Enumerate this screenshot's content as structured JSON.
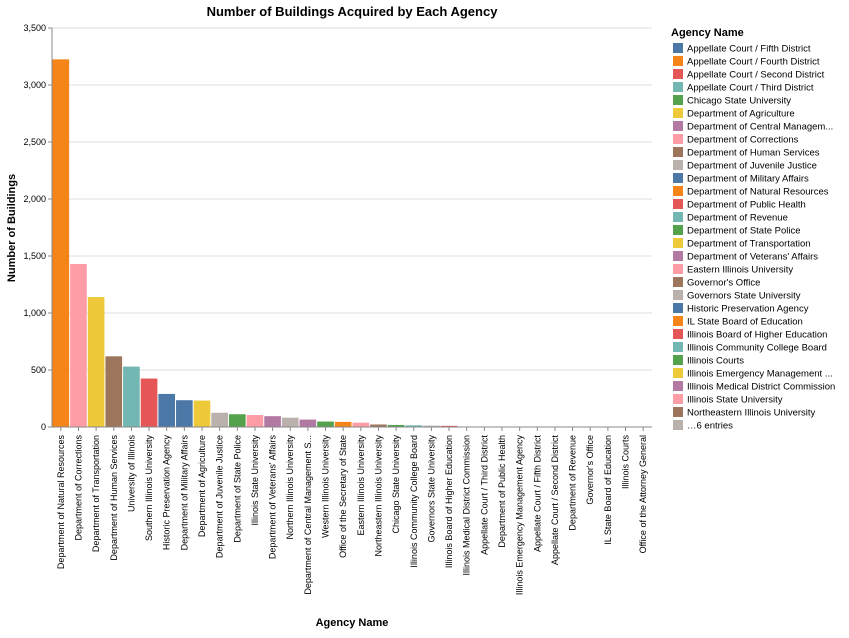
{
  "chart_data": {
    "type": "bar",
    "title": "Number of Buildings Acquired by Each Agency",
    "xlabel": "Agency Name",
    "ylabel": "Number of Buildings",
    "ylim": [
      0,
      3500
    ],
    "yticks": [
      0,
      500,
      1000,
      1500,
      2000,
      2500,
      3000,
      3500
    ],
    "ytick_labels": [
      "0",
      "500",
      "1,000",
      "1,500",
      "2,000",
      "2,500",
      "3,000",
      "3,500"
    ],
    "grid": true,
    "categories": [
      "Department of Natural Resources",
      "Department of Corrections",
      "Department of Transportation",
      "Department of Human Services",
      "University of Illinois",
      "Southern Illinois University",
      "Historic Preservation Agency",
      "Department of Military Affairs",
      "Department of Agriculture",
      "Department of Juvenile Justice",
      "Department of State Police",
      "Illinois State University",
      "Department of Veterans' Affairs",
      "Northern Illinois University",
      "Department of Central Management S...",
      "Western Illinois University",
      "Office of the Secretary of State",
      "Eastern Illinois University",
      "Northeastern Illinois University",
      "Chicago State University",
      "Illinois Community College Board",
      "Governors State University",
      "Illinois Board of Higher Education",
      "Illinois Medical District Commission",
      "Appellate Court / Third District",
      "Department of Public Health",
      "Illinois Emergency Management Agency",
      "Appellate Court / Fifth District",
      "Appellate Court / Second District",
      "Department of Revenue",
      "Governor's Office",
      "IL State Board of Education",
      "Illinois Courts",
      "Office of the Attorney General"
    ],
    "values": [
      3225,
      1430,
      1140,
      620,
      530,
      425,
      290,
      235,
      232,
      125,
      112,
      105,
      95,
      82,
      65,
      48,
      45,
      38,
      22,
      18,
      15,
      12,
      10,
      4,
      3,
      3,
      3,
      2,
      2,
      2,
      1,
      1,
      1,
      1
    ],
    "bar_colors": [
      "#f58518",
      "#ff9da6",
      "#eeca3b",
      "#9d755d",
      "#72b7b2",
      "#e45756",
      "#4c78a8",
      "#4c78a8",
      "#eeca3b",
      "#bab0ac",
      "#54a24b",
      "#ff9da6",
      "#b279a2",
      "#bab0ac",
      "#b279a2",
      "#54a24b",
      "#f58518",
      "#ff9da6",
      "#9d755d",
      "#54a24b",
      "#72b7b2",
      "#bab0ac",
      "#e45756",
      "#b279a2",
      "#72b7b2",
      "#e45756",
      "#eeca3b",
      "#4c78a8",
      "#e45756",
      "#72b7b2",
      "#9d755d",
      "#f58518",
      "#54a24b",
      "#4c78a8"
    ],
    "legend": {
      "title": "Agency Name",
      "position": "right",
      "entries": [
        {
          "label": "Appellate Court / Fifth District",
          "color": "#4c78a8"
        },
        {
          "label": "Appellate Court / Fourth District",
          "color": "#f58518"
        },
        {
          "label": "Appellate Court / Second District",
          "color": "#e45756"
        },
        {
          "label": "Appellate Court / Third District",
          "color": "#72b7b2"
        },
        {
          "label": "Chicago State University",
          "color": "#54a24b"
        },
        {
          "label": "Department of Agriculture",
          "color": "#eeca3b"
        },
        {
          "label": "Department of Central Managem...",
          "color": "#b279a2"
        },
        {
          "label": "Department of Corrections",
          "color": "#ff9da6"
        },
        {
          "label": "Department of Human Services",
          "color": "#9d755d"
        },
        {
          "label": "Department of Juvenile Justice",
          "color": "#bab0ac"
        },
        {
          "label": "Department of Military Affairs",
          "color": "#4c78a8"
        },
        {
          "label": "Department of Natural Resources",
          "color": "#f58518"
        },
        {
          "label": "Department of Public Health",
          "color": "#e45756"
        },
        {
          "label": "Department of Revenue",
          "color": "#72b7b2"
        },
        {
          "label": "Department of State Police",
          "color": "#54a24b"
        },
        {
          "label": "Department of Transportation",
          "color": "#eeca3b"
        },
        {
          "label": "Department of Veterans' Affairs",
          "color": "#b279a2"
        },
        {
          "label": "Eastern Illinois University",
          "color": "#ff9da6"
        },
        {
          "label": "Governor's Office",
          "color": "#9d755d"
        },
        {
          "label": "Governors State University",
          "color": "#bab0ac"
        },
        {
          "label": "Historic Preservation Agency",
          "color": "#4c78a8"
        },
        {
          "label": "IL State Board of Education",
          "color": "#f58518"
        },
        {
          "label": "Illinois Board of Higher Education",
          "color": "#e45756"
        },
        {
          "label": "Illinois Community College Board",
          "color": "#72b7b2"
        },
        {
          "label": "Illinois Courts",
          "color": "#54a24b"
        },
        {
          "label": "Illinois Emergency Management ...",
          "color": "#eeca3b"
        },
        {
          "label": "Illinois Medical District Commission",
          "color": "#b279a2"
        },
        {
          "label": "Illinois State University",
          "color": "#ff9da6"
        },
        {
          "label": "Northeastern Illinois University",
          "color": "#9d755d"
        },
        {
          "label": "…6 entries",
          "color": "#bab0ac"
        }
      ]
    }
  }
}
